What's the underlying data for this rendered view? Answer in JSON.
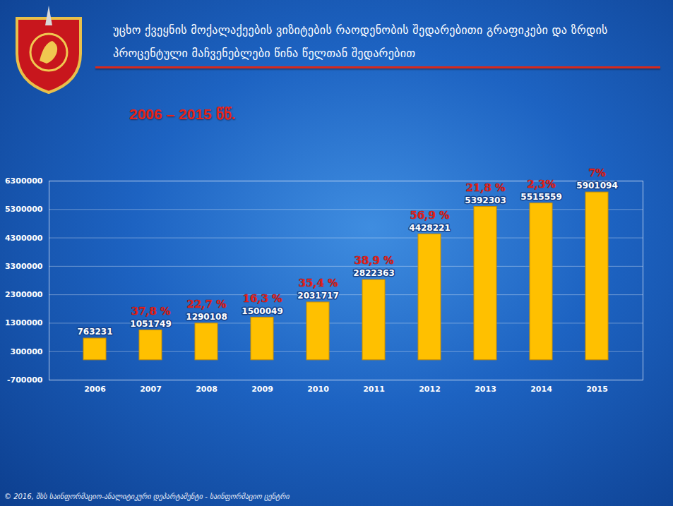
{
  "chart_data": {
    "type": "bar",
    "title": "უცხო ქვეყნის მოქალაქეების ვიზიტების რაოდენობის შედარებითი გრაფიკები და ზრდის პროცენტული მაჩვენებლები წინა წელთან შედარებით",
    "subtitle": "2006 – 2015 წწ.",
    "caption": "© 2016, შსს საინფორმაციო-ანალიტიკური დეპარტამენტი - საინფორმაციო ცენტრი",
    "categories": [
      "2006",
      "2007",
      "2008",
      "2009",
      "2010",
      "2011",
      "2012",
      "2013",
      "2014",
      "2015"
    ],
    "values": [
      763231,
      1051749,
      1290108,
      1500049,
      2031717,
      2822363,
      4428221,
      5392303,
      5515559,
      5901094
    ],
    "color": "#FFC000",
    "growth": [
      null,
      37.8,
      22.7,
      16.3,
      35.4,
      38.9,
      56.9,
      21.8,
      2.3,
      7
    ],
    "growth_labels": [
      null,
      "37,8 %",
      "22,7 %",
      "16,3 %",
      "35,4 %",
      "38,9 %",
      "56,9 %",
      "21,8 %",
      "2,3%",
      "7%"
    ],
    "ylim": [
      -700000,
      6300000
    ],
    "yticks": [
      -700000,
      300000,
      1300000,
      2300000,
      3300000,
      4300000,
      5300000,
      6300000
    ],
    "grid": true,
    "data_labels": true
  }
}
